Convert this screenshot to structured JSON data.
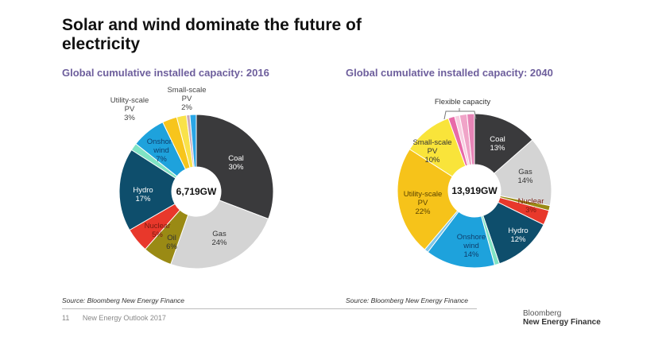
{
  "title": "Solar and wind dominate the future of electricity",
  "footer": {
    "page": "11",
    "publication": "New Energy Outlook 2017",
    "logo_line1": "Bloomberg",
    "logo_line2": "New Energy Finance"
  },
  "chart_data": [
    {
      "type": "pie",
      "style": "donut",
      "title": "Global cumulative installed capacity: 2016",
      "center_label": "6,719GW",
      "source": "Source: Bloomberg New Energy Finance",
      "slices": [
        {
          "name": "Coal",
          "value": 30,
          "color": "#3a3a3c",
          "labeled": true
        },
        {
          "name": "Gas",
          "value": 24,
          "color": "#d4d4d4",
          "labeled": true
        },
        {
          "name": "Oil",
          "value": 6,
          "color": "#9a8a14",
          "labeled": true
        },
        {
          "name": "Nuclear",
          "value": 5,
          "color": "#e8382b",
          "labeled": true
        },
        {
          "name": "Hydro",
          "value": 17,
          "color": "#0e4e6c",
          "labeled": true
        },
        {
          "name": "",
          "value": 1.5,
          "color": "#7fe3c4",
          "labeled": false
        },
        {
          "name": "Onshore wind",
          "value": 7,
          "color": "#1ea2dc",
          "labeled": true
        },
        {
          "name": "Utility-scale PV",
          "value": 3,
          "color": "#f7c51c",
          "labeled": true
        },
        {
          "name": "Small-scale PV",
          "value": 2,
          "color": "#f9e24a",
          "labeled": true
        },
        {
          "name": "",
          "value": 0.7,
          "color": "#c9a9b9",
          "labeled": false
        },
        {
          "name": "",
          "value": 1.3,
          "color": "#2aa6e6",
          "labeled": false
        }
      ]
    },
    {
      "type": "pie",
      "style": "donut",
      "title": "Global cumulative installed capacity: 2040",
      "center_label": "13,919GW",
      "source": "Source: Bloomberg New Energy Finance",
      "annotation": "Flexible capacity",
      "slices": [
        {
          "name": "Coal",
          "value": 13,
          "color": "#3a3a3c",
          "labeled": true
        },
        {
          "name": "Gas",
          "value": 14,
          "color": "#d4d4d4",
          "labeled": true
        },
        {
          "name": "",
          "value": 1,
          "color": "#9a8a14",
          "labeled": false
        },
        {
          "name": "Nuclear",
          "value": 3,
          "color": "#e8382b",
          "labeled": true
        },
        {
          "name": "Hydro",
          "value": 12,
          "color": "#0e4e6c",
          "labeled": true
        },
        {
          "name": "",
          "value": 1,
          "color": "#7fe3c4",
          "labeled": false
        },
        {
          "name": "Onshore wind",
          "value": 14,
          "color": "#1ea2dc",
          "labeled": true
        },
        {
          "name": "",
          "value": 0.8,
          "color": "#7cc6ea",
          "labeled": false
        },
        {
          "name": "Utility-scale PV",
          "value": 22,
          "color": "#f6c31a",
          "labeled": true
        },
        {
          "name": "Small-scale PV",
          "value": 10,
          "color": "#f9e43a",
          "labeled": true
        },
        {
          "name": "",
          "value": 1.3,
          "color": "#e86aa8",
          "labeled": false
        },
        {
          "name": "",
          "value": 1,
          "color": "#f7cde0",
          "labeled": false
        },
        {
          "name": "",
          "value": 1.5,
          "color": "#f0a4c8",
          "labeled": false
        },
        {
          "name": "",
          "value": 1.5,
          "color": "#e784b6",
          "labeled": false
        }
      ]
    }
  ]
}
